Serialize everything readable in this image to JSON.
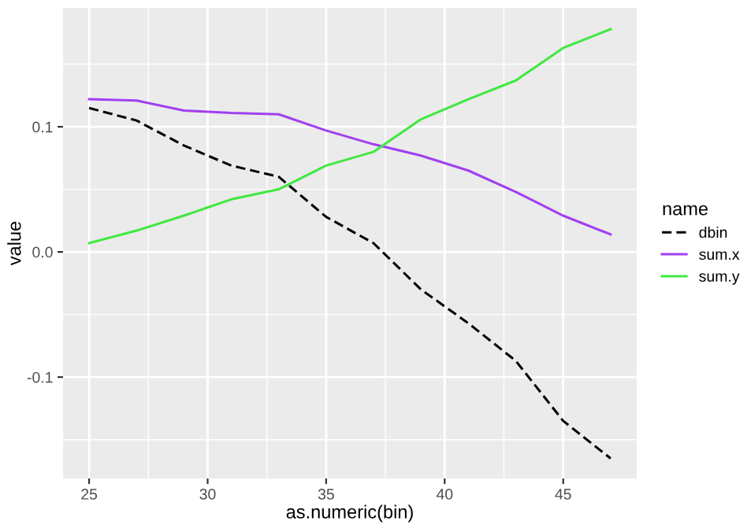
{
  "chart_data": {
    "type": "line",
    "xlabel": "as.numeric(bin)",
    "ylabel": "value",
    "legend_title": "name",
    "x": [
      25,
      27,
      29,
      31,
      33,
      35,
      37,
      39,
      41,
      43,
      45,
      47
    ],
    "series": [
      {
        "name": "dbin",
        "color": "#000000",
        "line_style": "dashed",
        "values": [
          0.115,
          0.105,
          0.085,
          0.069,
          0.06,
          0.028,
          0.007,
          -0.03,
          -0.057,
          -0.087,
          -0.135,
          -0.165
        ]
      },
      {
        "name": "sum.x",
        "color": "#a040f0",
        "values": [
          0.122,
          0.121,
          0.113,
          0.111,
          0.11,
          0.097,
          0.086,
          0.077,
          0.065,
          0.048,
          0.029,
          0.014
        ]
      },
      {
        "name": "sum.y",
        "color": "#40e840",
        "values": [
          0.007,
          0.017,
          0.029,
          0.042,
          0.05,
          0.069,
          0.08,
          0.106,
          0.122,
          0.137,
          0.163,
          0.178
        ]
      }
    ],
    "xlim": [
      23.9,
      48.1
    ],
    "xticks": [
      25,
      30,
      35,
      40,
      45
    ],
    "ylim": [
      -0.181,
      0.195
    ],
    "yticks": [
      {
        "value": -0.1,
        "label": "-0.1"
      },
      {
        "value": 0.0,
        "label": "0.0"
      },
      {
        "value": 0.1,
        "label": "0.1"
      }
    ],
    "grid": true,
    "legend": "right",
    "marker": "none"
  }
}
